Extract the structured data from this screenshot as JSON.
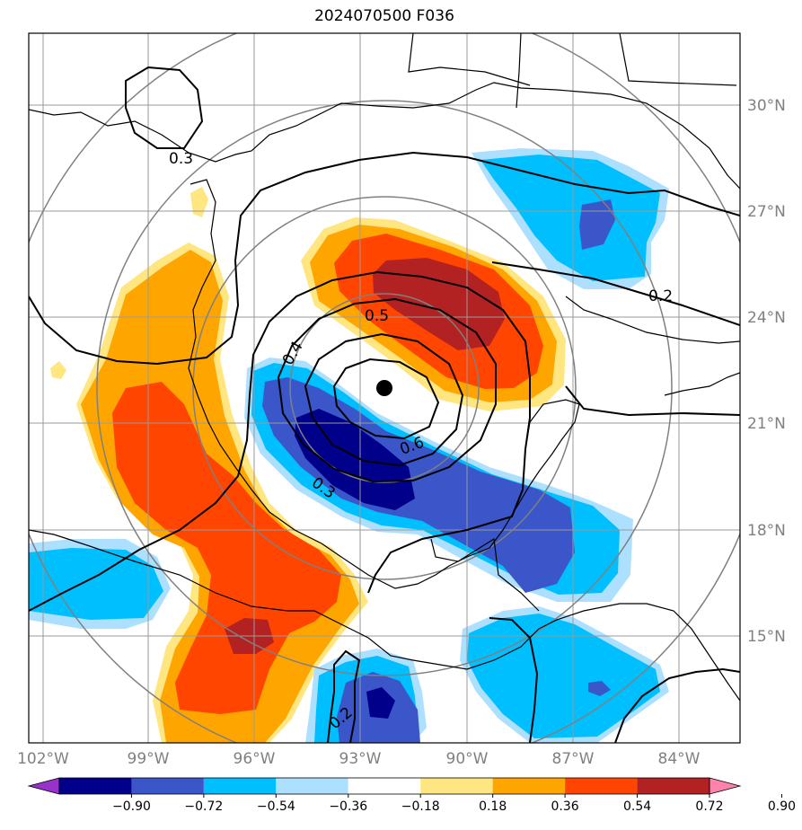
{
  "map": {
    "title": "2024070500 F036",
    "lat_labels": [
      "30°N",
      "27°N",
      "24°N",
      "21°N",
      "18°N",
      "15°N"
    ],
    "lon_labels": [
      "102°W",
      "99°W",
      "96°W",
      "93°W",
      "90°W",
      "87°W",
      "84°W"
    ],
    "contour_labels": [
      "0.3",
      "0.2",
      "0.5",
      "0.4",
      "0.6",
      "0.3",
      "0.2"
    ],
    "colorbar": {
      "tick_labels": [
        "−0.90",
        "−0.72",
        "−0.54",
        "−0.36",
        "−0.18",
        "0.18",
        "0.36",
        "0.54",
        "0.72",
        "0.90"
      ],
      "colors": [
        "#9932CC",
        "#00008B",
        "#3A56C8",
        "#00BFFF",
        "#ADDFFF",
        "#FFFFFF",
        "#FFE680",
        "#FFA500",
        "#FF4500",
        "#B22222",
        "#FF82AB"
      ]
    },
    "center_marker": "storm-center"
  }
}
